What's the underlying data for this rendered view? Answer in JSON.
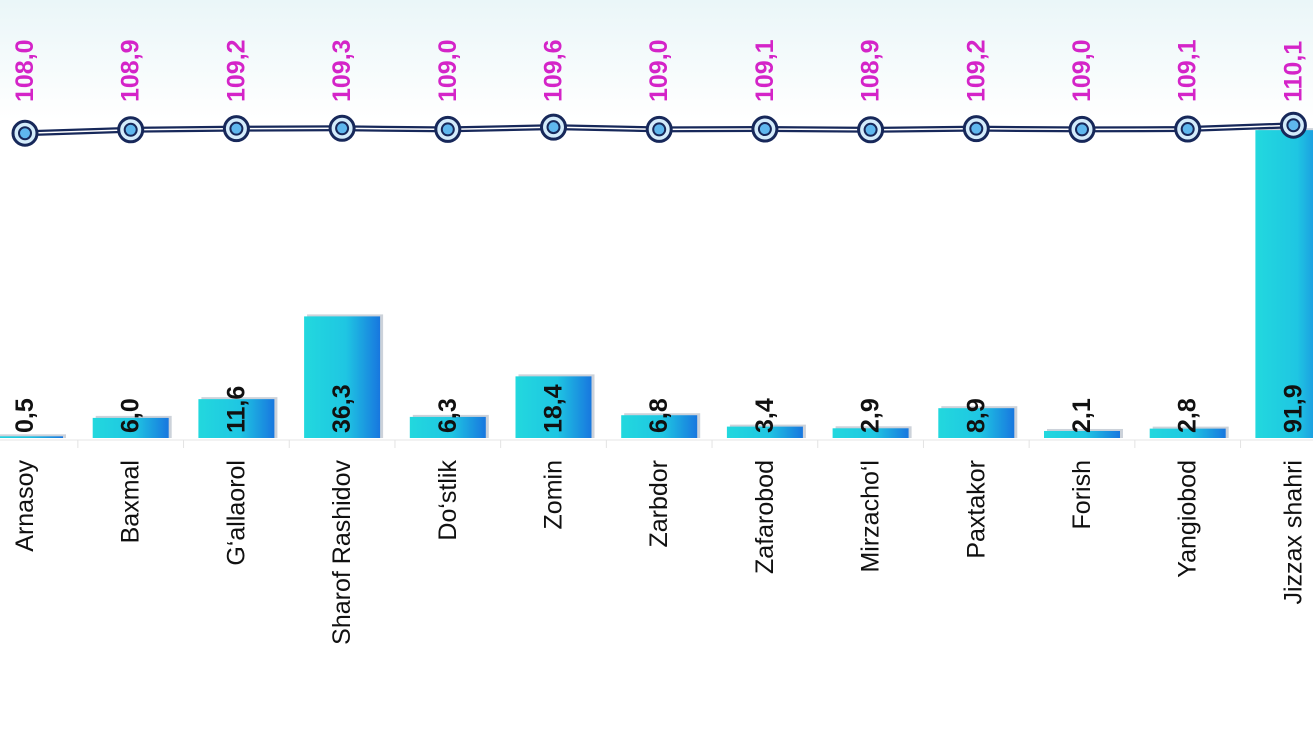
{
  "chart_data": {
    "type": "bar",
    "categories": [
      "Arnasoy",
      "Baxmal",
      "G‘allaorol",
      "Sharof Rashidov",
      "Do‘stlik",
      "Zomin",
      "Zarbdor",
      "Zafarobod",
      "Mirzacho‘l",
      "Paxtakor",
      "Forish",
      "Yangiobod",
      "Jizzax shahri"
    ],
    "series": [
      {
        "type": "bar",
        "color": "#1fd3df",
        "values": [
          0.5,
          6.0,
          11.6,
          36.3,
          6.3,
          18.4,
          6.8,
          3.4,
          2.9,
          8.9,
          2.1,
          2.8,
          91.9
        ],
        "value_labels": [
          "0,5",
          "6,0",
          "11,6",
          "36,3",
          "6,3",
          "18,4",
          "6,8",
          "3,4",
          "2,9",
          "8,9",
          "2,1",
          "2,8",
          "91,9"
        ]
      },
      {
        "type": "line",
        "axis": "y2",
        "color": "#17285a",
        "values": [
          108.0,
          108.9,
          109.2,
          109.3,
          109.0,
          109.6,
          109.0,
          109.1,
          108.9,
          109.2,
          109.0,
          109.1,
          110.1
        ],
        "value_labels": [
          "108,0",
          "108,9",
          "109,2",
          "109,3",
          "109,0",
          "109,6",
          "109,0",
          "109,1",
          "108,9",
          "109,2",
          "109,0",
          "109,1",
          "110,1"
        ]
      }
    ],
    "ylim": [
      0,
      100
    ],
    "y2lim": [
      28,
      112
    ]
  }
}
